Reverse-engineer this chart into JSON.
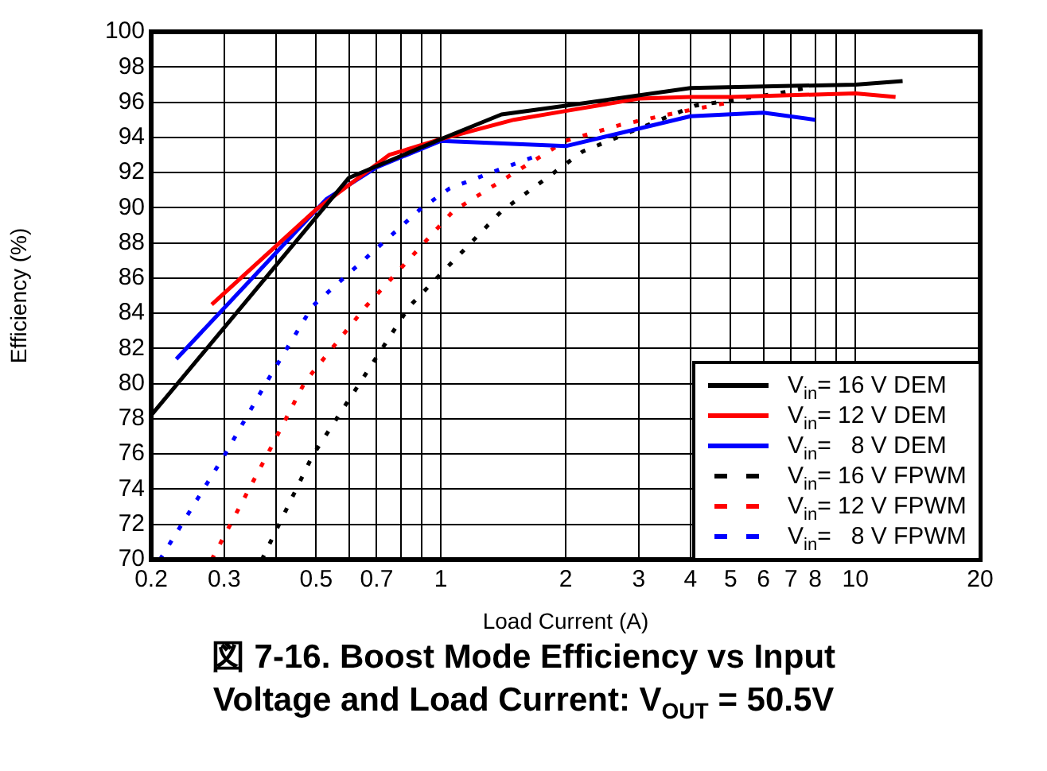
{
  "chart_data": {
    "type": "line",
    "title": "図 7-16. Boost Mode Efficiency vs Input Voltage and Load Current: V$_{OUT}$ = 50.5V",
    "xlabel": "Load Current (A)",
    "ylabel": "Efficiency (%)",
    "log": "x",
    "xlim": [
      0.2,
      20
    ],
    "ylim": [
      70,
      100
    ],
    "xticks": [
      0.2,
      0.3,
      {
        "value": 0.4,
        "label": null
      },
      0.5,
      {
        "value": 0.6,
        "label": null
      },
      0.7,
      {
        "value": 0.8,
        "label": null
      },
      {
        "value": 0.9,
        "label": null
      },
      1,
      2,
      3,
      4,
      5,
      6,
      7,
      8,
      {
        "value": 9,
        "label": null
      },
      10,
      20
    ],
    "yticks": [
      70,
      72,
      74,
      76,
      78,
      80,
      82,
      84,
      86,
      88,
      90,
      92,
      94,
      96,
      98,
      100
    ],
    "grid": true,
    "legend": "bottom right",
    "marker": "none",
    "series": [
      {
        "name": "V$_{in}$= 16 V DEM",
        "color": "#000000",
        "line_style": "solid",
        "x": [
          0.2,
          0.6,
          1,
          1.4,
          2,
          4,
          10,
          13
        ],
        "values": [
          78.2,
          91.7,
          93.9,
          95.3,
          95.8,
          96.8,
          97.0,
          97.2
        ]
      },
      {
        "name": "V$_{in}$= 12 V DEM",
        "color": "#ff0000",
        "line_style": "solid",
        "x": [
          0.28,
          0.5,
          0.75,
          1,
          1.5,
          2,
          3,
          4,
          5,
          10,
          12.5
        ],
        "values": [
          84.5,
          89.9,
          93.0,
          93.9,
          95.0,
          95.5,
          96.2,
          96.3,
          96.3,
          96.5,
          96.3
        ]
      },
      {
        "name": "V$_{in}$=   8 V DEM",
        "color": "#0000ff",
        "line_style": "solid",
        "x": [
          0.23,
          0.53,
          0.7,
          1,
          2,
          4,
          6,
          8
        ],
        "values": [
          81.4,
          90.5,
          92.3,
          93.8,
          93.5,
          95.2,
          95.4,
          95.0
        ]
      },
      {
        "name": "V$_{in}$= 16 V FPWM",
        "color": "#000000",
        "line_style": "dashed",
        "x": [
          0.37,
          0.49,
          0.64,
          0.84,
          1.4,
          2.2,
          4.1,
          6.5,
          7.6
        ],
        "values": [
          70,
          75.9,
          80.1,
          84.4,
          89.8,
          93.2,
          95.8,
          96.5,
          96.8
        ]
      },
      {
        "name": "V$_{in}$= 12 V FPWM",
        "color": "#ff0000",
        "line_style": "dashed",
        "x": [
          0.28,
          0.38,
          0.47,
          0.66,
          1.07,
          1.46,
          2.0,
          2.7,
          3.7,
          5.0
        ],
        "values": [
          70,
          75.9,
          80.1,
          84.4,
          89.8,
          91.8,
          93.8,
          94.7,
          95.4,
          96.0
        ]
      },
      {
        "name": "V$_{in}$=   8 V FPWM",
        "color": "#0000ff",
        "line_style": "dashed",
        "x": [
          0.21,
          0.3,
          0.38,
          0.49,
          0.89,
          1.05,
          1.43,
          1.68
        ],
        "values": [
          70,
          75.9,
          80.1,
          84.4,
          89.9,
          91.1,
          92.3,
          92.9
        ]
      }
    ]
  }
}
